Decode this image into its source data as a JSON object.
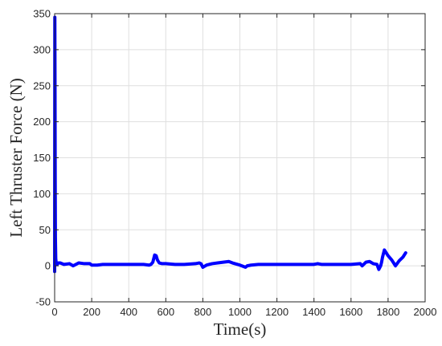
{
  "chart_data": {
    "type": "line",
    "title": "",
    "xlabel": "Time(s)",
    "ylabel": "Left Thruster Force (N)",
    "xlim": [
      0,
      2000
    ],
    "ylim": [
      -50,
      350
    ],
    "xticks": [
      0,
      200,
      400,
      600,
      800,
      1000,
      1200,
      1400,
      1600,
      1800,
      2000
    ],
    "yticks": [
      -50,
      0,
      50,
      100,
      150,
      200,
      250,
      300,
      350
    ],
    "grid": true,
    "series": [
      {
        "color": "#0000ff",
        "x": [
          0,
          1,
          2,
          3,
          4,
          6,
          8,
          10,
          14,
          20,
          30,
          50,
          80,
          100,
          130,
          160,
          190,
          200,
          230,
          260,
          300,
          400,
          480,
          510,
          520,
          530,
          540,
          548,
          555,
          565,
          580,
          600,
          650,
          700,
          760,
          780,
          790,
          800,
          820,
          850,
          880,
          910,
          940,
          960,
          1000,
          1030,
          1040,
          1060,
          1100,
          1200,
          1300,
          1400,
          1420,
          1440,
          1500,
          1600,
          1650,
          1660,
          1680,
          1700,
          1720,
          1740,
          1750,
          1760,
          1765,
          1770,
          1780,
          1800,
          1820,
          1840,
          1860,
          1880,
          1895
        ],
        "y": [
          -8,
          345,
          250,
          120,
          40,
          10,
          5,
          3,
          2,
          4,
          4,
          2,
          3,
          0,
          4,
          3,
          3,
          1,
          1,
          2,
          2,
          2,
          2,
          1,
          2,
          5,
          15,
          14,
          8,
          4,
          3,
          3,
          2,
          2,
          3,
          4,
          3,
          -2,
          1,
          3,
          4,
          5,
          6,
          4,
          1,
          -2,
          0,
          1,
          2,
          2,
          2,
          2,
          3,
          2,
          2,
          2,
          3,
          0,
          5,
          6,
          3,
          2,
          -5,
          0,
          5,
          12,
          22,
          14,
          8,
          0,
          7,
          12,
          18
        ]
      }
    ]
  }
}
